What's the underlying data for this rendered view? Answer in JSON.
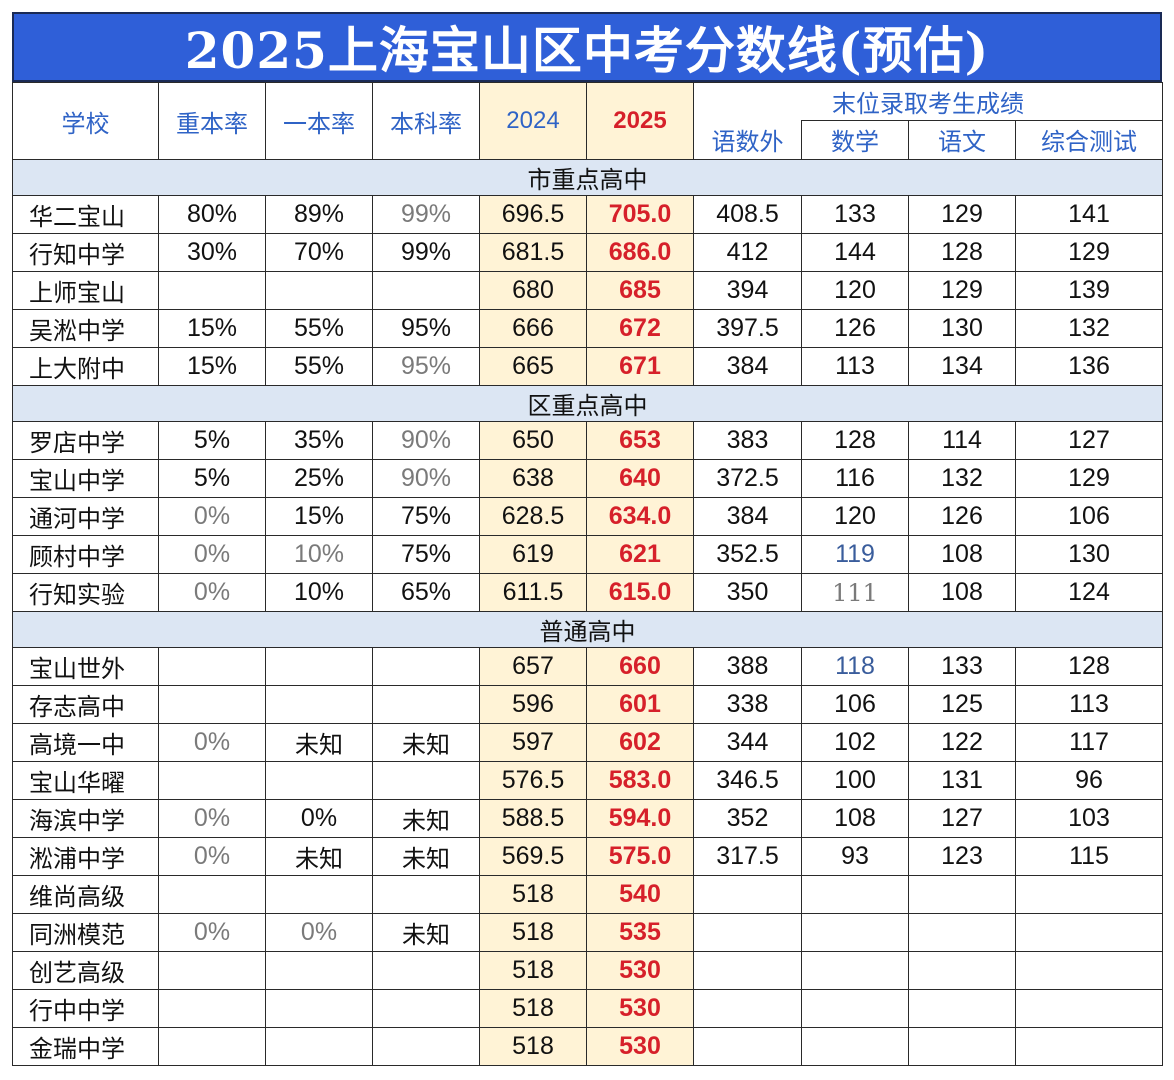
{
  "title": "2025上海宝山区中考分数线(预估)",
  "headers": {
    "school": "学校",
    "key_rate": "重本率",
    "tier1_rate": "一本率",
    "bachelor_rate": "本科率",
    "y2024": "2024",
    "y2025": "2025",
    "last_admit": "末位录取考生成绩",
    "sub_scores": [
      "语数外",
      "数学",
      "语文",
      "综合测试"
    ]
  },
  "sections": [
    {
      "name": "市重点高中",
      "rows": [
        {
          "school": "华二宝山",
          "key_rate": "80%",
          "tier1_rate": "89%",
          "bachelor_rate": "99%",
          "y2024": "696.5",
          "y2025": "705.0",
          "total3": "408.5",
          "math": "133",
          "chinese": "129",
          "comp": "141",
          "style": {
            "bachelor_rate": "muted"
          }
        },
        {
          "school": "行知中学",
          "key_rate": "30%",
          "tier1_rate": "70%",
          "bachelor_rate": "99%",
          "y2024": "681.5",
          "y2025": "686.0",
          "total3": "412",
          "math": "144",
          "chinese": "128",
          "comp": "129"
        },
        {
          "school": "上师宝山",
          "key_rate": "",
          "tier1_rate": "",
          "bachelor_rate": "",
          "y2024": "680",
          "y2025": "685",
          "total3": "394",
          "math": "120",
          "chinese": "129",
          "comp": "139"
        },
        {
          "school": "吴淞中学",
          "key_rate": "15%",
          "tier1_rate": "55%",
          "bachelor_rate": "95%",
          "y2024": "666",
          "y2025": "672",
          "total3": "397.5",
          "math": "126",
          "chinese": "130",
          "comp": "132"
        },
        {
          "school": "上大附中",
          "key_rate": "15%",
          "tier1_rate": "55%",
          "bachelor_rate": "95%",
          "y2024": "665",
          "y2025": "671",
          "total3": "384",
          "math": "113",
          "chinese": "134",
          "comp": "136",
          "style": {
            "bachelor_rate": "muted"
          }
        }
      ]
    },
    {
      "name": "区重点高中",
      "rows": [
        {
          "school": "罗店中学",
          "key_rate": "5%",
          "tier1_rate": "35%",
          "bachelor_rate": "90%",
          "y2024": "650",
          "y2025": "653",
          "total3": "383",
          "math": "128",
          "chinese": "114",
          "comp": "127",
          "style": {
            "bachelor_rate": "muted"
          }
        },
        {
          "school": "宝山中学",
          "key_rate": "5%",
          "tier1_rate": "25%",
          "bachelor_rate": "90%",
          "y2024": "638",
          "y2025": "640",
          "total3": "372.5",
          "math": "116",
          "chinese": "132",
          "comp": "129",
          "style": {
            "bachelor_rate": "muted"
          }
        },
        {
          "school": "通河中学",
          "key_rate": "0%",
          "tier1_rate": "15%",
          "bachelor_rate": "75%",
          "y2024": "628.5",
          "y2025": "634.0",
          "total3": "384",
          "math": "120",
          "chinese": "126",
          "comp": "106",
          "style": {
            "key_rate": "muted"
          }
        },
        {
          "school": "顾村中学",
          "key_rate": "0%",
          "tier1_rate": "10%",
          "bachelor_rate": "75%",
          "y2024": "619",
          "y2025": "621",
          "total3": "352.5",
          "math": "119",
          "chinese": "108",
          "comp": "130",
          "style": {
            "key_rate": "muted",
            "tier1_rate": "muted",
            "math": "blue"
          }
        },
        {
          "school": "行知实验",
          "key_rate": "0%",
          "tier1_rate": "10%",
          "bachelor_rate": "65%",
          "y2024": "611.5",
          "y2025": "615.0",
          "total3": "350",
          "math": "111",
          "chinese": "108",
          "comp": "124",
          "style": {
            "key_rate": "muted",
            "math": "muted serif"
          }
        }
      ]
    },
    {
      "name": "普通高中",
      "rows": [
        {
          "school": "宝山世外",
          "key_rate": "",
          "tier1_rate": "",
          "bachelor_rate": "",
          "y2024": "657",
          "y2025": "660",
          "total3": "388",
          "math": "118",
          "chinese": "133",
          "comp": "128",
          "style": {
            "math": "blue"
          }
        },
        {
          "school": "存志高中",
          "key_rate": "",
          "tier1_rate": "",
          "bachelor_rate": "",
          "y2024": "596",
          "y2025": "601",
          "total3": "338",
          "math": "106",
          "chinese": "125",
          "comp": "113"
        },
        {
          "school": "高境一中",
          "key_rate": "0%",
          "tier1_rate": "未知",
          "bachelor_rate": "未知",
          "y2024": "597",
          "y2025": "602",
          "total3": "344",
          "math": "102",
          "chinese": "122",
          "comp": "117",
          "style": {
            "key_rate": "muted",
            "tier1_rate": "serif",
            "bachelor_rate": "serif"
          }
        },
        {
          "school": "宝山华曜",
          "key_rate": "",
          "tier1_rate": "",
          "bachelor_rate": "",
          "y2024": "576.5",
          "y2025": "583.0",
          "total3": "346.5",
          "math": "100",
          "chinese": "131",
          "comp": "96"
        },
        {
          "school": "海滨中学",
          "key_rate": "0%",
          "tier1_rate": "0%",
          "bachelor_rate": "未知",
          "y2024": "588.5",
          "y2025": "594.0",
          "total3": "352",
          "math": "108",
          "chinese": "127",
          "comp": "103",
          "style": {
            "key_rate": "muted",
            "bachelor_rate": "serif"
          }
        },
        {
          "school": "淞浦中学",
          "key_rate": "0%",
          "tier1_rate": "未知",
          "bachelor_rate": "未知",
          "y2024": "569.5",
          "y2025": "575.0",
          "total3": "317.5",
          "math": "93",
          "chinese": "123",
          "comp": "115",
          "style": {
            "key_rate": "muted",
            "tier1_rate": "serif",
            "bachelor_rate": "serif"
          }
        },
        {
          "school": "维尚高级",
          "key_rate": "",
          "tier1_rate": "",
          "bachelor_rate": "",
          "y2024": "518",
          "y2025": "540",
          "total3": "",
          "math": "",
          "chinese": "",
          "comp": ""
        },
        {
          "school": "同洲模范",
          "key_rate": "0%",
          "tier1_rate": "0%",
          "bachelor_rate": "未知",
          "y2024": "518",
          "y2025": "535",
          "total3": "",
          "math": "",
          "chinese": "",
          "comp": "",
          "style": {
            "key_rate": "muted",
            "tier1_rate": "muted",
            "bachelor_rate": "serif"
          }
        },
        {
          "school": "创艺高级",
          "key_rate": "",
          "tier1_rate": "",
          "bachelor_rate": "",
          "y2024": "518",
          "y2025": "530",
          "total3": "",
          "math": "",
          "chinese": "",
          "comp": ""
        },
        {
          "school": "行中中学",
          "key_rate": "",
          "tier1_rate": "",
          "bachelor_rate": "",
          "y2024": "518",
          "y2025": "530",
          "total3": "",
          "math": "",
          "chinese": "",
          "comp": ""
        },
        {
          "school": "金瑞中学",
          "key_rate": "",
          "tier1_rate": "",
          "bachelor_rate": "",
          "y2024": "518",
          "y2025": "530",
          "total3": "",
          "math": "",
          "chinese": "",
          "comp": ""
        }
      ]
    }
  ]
}
